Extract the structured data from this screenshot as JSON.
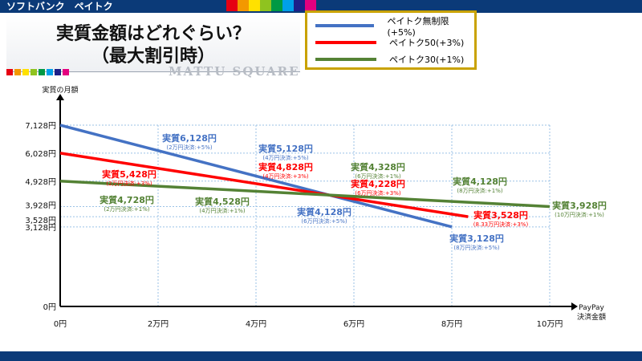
{
  "header": {
    "category_label": "ソフトバンク　ペイトク",
    "stripe_colors": [
      "#e60012",
      "#f39800",
      "#ffe100",
      "#8fc31f",
      "#009944",
      "#00a0e9",
      "#1d2088",
      "#e4007f"
    ]
  },
  "title": {
    "line1": "実質金額はどれぐらい？",
    "line2": "（最大割引時）"
  },
  "watermark": "MATTU SQUARE",
  "chart_data": {
    "type": "line",
    "ylabel": "実質の月額",
    "xlabel": "PayPay\n決済金額",
    "x_ticks": [
      "0円",
      "2万円",
      "4万円",
      "6万円",
      "8万円",
      "10万円"
    ],
    "x_values": [
      0,
      20000,
      40000,
      60000,
      80000,
      100000
    ],
    "y_ticks": [
      "0円",
      "3,128円",
      "3,528円",
      "3,928円",
      "4,928円",
      "6,028円",
      "7,128円"
    ],
    "y_tick_values": [
      0,
      3128,
      3528,
      3928,
      4928,
      6028,
      7128
    ],
    "grid": "dashed guide lines at labeled points",
    "legend_position": "top-right",
    "series": [
      {
        "name": "ペイトク無制限(+5%)",
        "color": "#4472c4",
        "x": [
          0,
          80000
        ],
        "y": [
          7128,
          3128
        ],
        "annotations": [
          {
            "x": 20000,
            "y": 6128,
            "label": "実質6,128円",
            "sub": "(2万円決済:+5%)"
          },
          {
            "x": 40000,
            "y": 5128,
            "label": "実質5,128円",
            "sub": "(4万円決済:+5%)"
          },
          {
            "x": 60000,
            "y": 4128,
            "label": "実質4,128円",
            "sub": "(6万円決済:+5%)"
          },
          {
            "x": 80000,
            "y": 3128,
            "label": "実質3,128円",
            "sub": "(8万円決済:+5%)"
          }
        ]
      },
      {
        "name": "ペイトク50(+3%)",
        "color": "#ff0000",
        "x": [
          0,
          83333
        ],
        "y": [
          6028,
          3528
        ],
        "annotations": [
          {
            "x": 20000,
            "y": 5428,
            "label": "実質5,428円",
            "sub": "(2万円決済:+3%)"
          },
          {
            "x": 40000,
            "y": 4828,
            "label": "実質4,828円",
            "sub": "(4万円決済:+3%)"
          },
          {
            "x": 60000,
            "y": 4228,
            "label": "実質4,228円",
            "sub": "(6万円決済:+3%)"
          },
          {
            "x": 83333,
            "y": 3528,
            "label": "実質3,528円",
            "sub": "(8.33万円決済:+3%)"
          }
        ]
      },
      {
        "name": "ペイトク30(+1%)",
        "color": "#548235",
        "x": [
          0,
          100000
        ],
        "y": [
          4928,
          3928
        ],
        "annotations": [
          {
            "x": 20000,
            "y": 4728,
            "label": "実質4,728円",
            "sub": "(2万円決済:+1%)"
          },
          {
            "x": 40000,
            "y": 4528,
            "label": "実質4,528円",
            "sub": "(4万円決済:+1%)"
          },
          {
            "x": 60000,
            "y": 4328,
            "label": "実質4,328円",
            "sub": "(6万円決済:+1%)"
          },
          {
            "x": 80000,
            "y": 4128,
            "label": "実質4,128円",
            "sub": "(8万円決済:+1%)"
          },
          {
            "x": 100000,
            "y": 3928,
            "label": "実質3,928円",
            "sub": "(10万円決済:+1%)"
          }
        ]
      }
    ]
  }
}
